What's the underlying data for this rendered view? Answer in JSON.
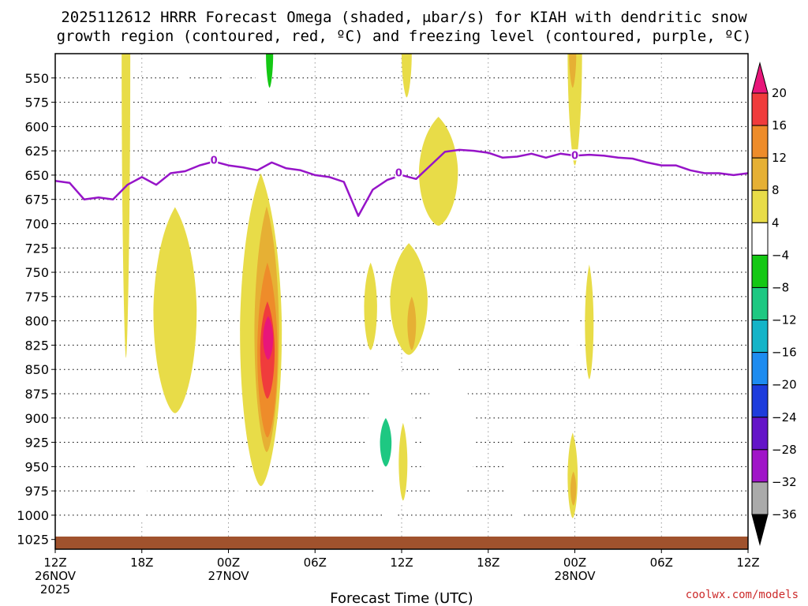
{
  "title": {
    "line1": "2025112612 HRRR Forecast Omega (shaded, μbar/s) for KIAH with dendritic snow",
    "line2": "growth region (contoured, red, ºC) and freezing level (contoured, purple, ºC)"
  },
  "credit": "coolwx.com/models",
  "chart_data": {
    "type": "heatmap",
    "title": "2025112612 HRRR Forecast Omega (shaded, μbar/s) for KIAH with dendritic snow growth region (contoured, red, ºC) and freezing level (contoured, purple, ºC)",
    "xlabel": "Forecast Time (UTC)",
    "ylabel": "",
    "x_axis": {
      "unit": "forecast hour from 2025-11-26 12Z",
      "range": [
        0,
        48
      ],
      "ticks": [
        {
          "value": 0,
          "label": "12Z",
          "sub1": "26NOV",
          "sub2": "2025"
        },
        {
          "value": 6,
          "label": "18Z",
          "sub1": "",
          "sub2": ""
        },
        {
          "value": 12,
          "label": "00Z",
          "sub1": "27NOV",
          "sub2": ""
        },
        {
          "value": 18,
          "label": "06Z",
          "sub1": "",
          "sub2": ""
        },
        {
          "value": 24,
          "label": "12Z",
          "sub1": "",
          "sub2": ""
        },
        {
          "value": 30,
          "label": "18Z",
          "sub1": "",
          "sub2": ""
        },
        {
          "value": 36,
          "label": "00Z",
          "sub1": "28NOV",
          "sub2": ""
        },
        {
          "value": 42,
          "label": "06Z",
          "sub1": "",
          "sub2": ""
        },
        {
          "value": 48,
          "label": "12Z",
          "sub1": "",
          "sub2": ""
        }
      ]
    },
    "y_axis": {
      "unit": "hPa",
      "range": [
        525,
        1035
      ],
      "inverted": true,
      "ticks": [
        550,
        575,
        600,
        625,
        650,
        675,
        700,
        725,
        750,
        775,
        800,
        825,
        850,
        875,
        900,
        925,
        950,
        975,
        1000,
        1025
      ]
    },
    "grid": true,
    "colorbar": {
      "label_values": [
        20,
        16,
        12,
        8,
        4,
        -4,
        -8,
        -12,
        -16,
        -20,
        -24,
        -28,
        -32,
        -36
      ],
      "bins": [
        {
          "from": 20,
          "to": null,
          "color": "#e8167a"
        },
        {
          "from": 16,
          "to": 20,
          "color": "#f03c3c"
        },
        {
          "from": 12,
          "to": 16,
          "color": "#ee8c2a"
        },
        {
          "from": 8,
          "to": 12,
          "color": "#e6b034"
        },
        {
          "from": 4,
          "to": 8,
          "color": "#e8dc48"
        },
        {
          "from": -4,
          "to": 4,
          "color": "#ffffff"
        },
        {
          "from": -8,
          "to": -4,
          "color": "#14c814"
        },
        {
          "from": -12,
          "to": -8,
          "color": "#1ec882"
        },
        {
          "from": -16,
          "to": -12,
          "color": "#14b4c8"
        },
        {
          "from": -20,
          "to": -16,
          "color": "#1e8cf0"
        },
        {
          "from": -24,
          "to": -20,
          "color": "#1e3cdc"
        },
        {
          "from": -28,
          "to": -24,
          "color": "#6414c8"
        },
        {
          "from": -32,
          "to": -28,
          "color": "#a014c8"
        },
        {
          "from": -36,
          "to": -32,
          "color": "#aaaaaa"
        },
        {
          "from": null,
          "to": -36,
          "color": "#000000"
        }
      ]
    },
    "terrain": {
      "color": "#a0522d",
      "top_hPa": 1022
    },
    "freezing_level": {
      "label": "0",
      "color": "#9614c8",
      "label_points": [
        {
          "x": 11.0,
          "p": 635
        },
        {
          "x": 23.8,
          "p": 648
        },
        {
          "x": 36.0,
          "p": 630
        }
      ],
      "points": [
        [
          0,
          656
        ],
        [
          1,
          658
        ],
        [
          2,
          675
        ],
        [
          3,
          673
        ],
        [
          4,
          675
        ],
        [
          5,
          660
        ],
        [
          6,
          652
        ],
        [
          7,
          660
        ],
        [
          8,
          648
        ],
        [
          9,
          646
        ],
        [
          10,
          640
        ],
        [
          11,
          636
        ],
        [
          12,
          640
        ],
        [
          13,
          642
        ],
        [
          14,
          645
        ],
        [
          15,
          637
        ],
        [
          16,
          643
        ],
        [
          17,
          645
        ],
        [
          18,
          650
        ],
        [
          19,
          652
        ],
        [
          20,
          657
        ],
        [
          21,
          692
        ],
        [
          22,
          665
        ],
        [
          23,
          655
        ],
        [
          24,
          650
        ],
        [
          25,
          654
        ],
        [
          26,
          640
        ],
        [
          27,
          626
        ],
        [
          28,
          624
        ],
        [
          29,
          625
        ],
        [
          30,
          627
        ],
        [
          31,
          632
        ],
        [
          32,
          631
        ],
        [
          33,
          628
        ],
        [
          34,
          632
        ],
        [
          35,
          628
        ],
        [
          36,
          630
        ],
        [
          37,
          629
        ],
        [
          38,
          630
        ],
        [
          39,
          632
        ],
        [
          40,
          633
        ],
        [
          41,
          637
        ],
        [
          42,
          640
        ],
        [
          43,
          640
        ],
        [
          44,
          645
        ],
        [
          45,
          648
        ],
        [
          46,
          648
        ],
        [
          47,
          650
        ],
        [
          48,
          648
        ]
      ]
    },
    "omega_features": [
      {
        "x": [
          4.6,
          5.2
        ],
        "p": [
          525,
          838
        ],
        "level": 4
      },
      {
        "x": [
          8.5,
          9.3
        ],
        "p": [
          525,
          578
        ],
        "level": -4
      },
      {
        "x": [
          11.7,
          12.1
        ],
        "p": [
          525,
          672
        ],
        "level": -4
      },
      {
        "x": [
          13.8,
          15.0
        ],
        "p": [
          525,
          595
        ],
        "level": -4
      },
      {
        "x": [
          14.6,
          15.1
        ],
        "p": [
          525,
          560
        ],
        "level": -8
      },
      {
        "x": [
          24.0,
          24.7
        ],
        "p": [
          525,
          570
        ],
        "level": 4
      },
      {
        "x": [
          25.0,
          25.8
        ],
        "p": [
          525,
          548
        ],
        "level": -4
      },
      {
        "x": [
          35.5,
          36.5
        ],
        "p": [
          525,
          640
        ],
        "level": 4
      },
      {
        "x": [
          35.6,
          36.1
        ],
        "p": [
          525,
          560
        ],
        "level": 8
      },
      {
        "x": [
          36.7,
          37.3
        ],
        "p": [
          525,
          565
        ],
        "level": -4
      },
      {
        "x": [
          25.2,
          27.9
        ],
        "p": [
          590,
          702
        ],
        "level": 4
      },
      {
        "x": [
          6.8,
          9.8
        ],
        "p": [
          683,
          895
        ],
        "level": 4
      },
      {
        "x": [
          12.8,
          15.7
        ],
        "p": [
          648,
          970
        ],
        "level": 4
      },
      {
        "x": [
          13.8,
          15.5
        ],
        "p": [
          682,
          935
        ],
        "level": 8
      },
      {
        "x": [
          14.0,
          15.4
        ],
        "p": [
          740,
          920
        ],
        "level": 12
      },
      {
        "x": [
          14.2,
          15.2
        ],
        "p": [
          780,
          880
        ],
        "level": 16
      },
      {
        "x": [
          14.4,
          15.1
        ],
        "p": [
          795,
          840
        ],
        "level": 20
      },
      {
        "x": [
          12.6,
          13.2
        ],
        "p": [
          930,
          990
        ],
        "level": -4
      },
      {
        "x": [
          5.6,
          6.4
        ],
        "p": [
          925,
          1005
        ],
        "level": -4
      },
      {
        "x": [
          21.4,
          22.3
        ],
        "p": [
          740,
          830
        ],
        "level": 4
      },
      {
        "x": [
          23.2,
          25.8
        ],
        "p": [
          720,
          835
        ],
        "level": 4
      },
      {
        "x": [
          24.4,
          25.0
        ],
        "p": [
          775,
          830
        ],
        "level": 8
      },
      {
        "x": [
          21.6,
          24.8
        ],
        "p": [
          830,
          1005
        ],
        "level": -4
      },
      {
        "x": [
          22.5,
          23.3
        ],
        "p": [
          900,
          950
        ],
        "level": -12
      },
      {
        "x": [
          23.8,
          24.4
        ],
        "p": [
          905,
          985
        ],
        "level": 4
      },
      {
        "x": [
          25.4,
          29.1
        ],
        "p": [
          840,
          1000
        ],
        "level": -4
      },
      {
        "x": [
          31.1,
          33.0
        ],
        "p": [
          918,
          1005
        ],
        "level": -4
      },
      {
        "x": [
          35.5,
          36.2
        ],
        "p": [
          915,
          1003
        ],
        "level": 4
      },
      {
        "x": [
          35.7,
          36.1
        ],
        "p": [
          955,
          990
        ],
        "level": 8
      },
      {
        "x": [
          35.7,
          36.2
        ],
        "p": [
          763,
          845
        ],
        "level": -4
      },
      {
        "x": [
          36.7,
          37.3
        ],
        "p": [
          742,
          860
        ],
        "level": 4
      }
    ]
  }
}
